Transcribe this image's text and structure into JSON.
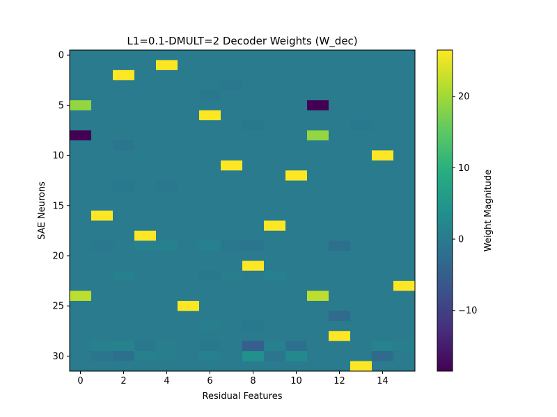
{
  "chart_data": {
    "type": "heatmap",
    "title": "L1=0.1-DMULT=2 Decoder Weights (W_dec)",
    "xlabel": "Residual Features",
    "ylabel": "SAE Neurons",
    "colorbar_label": "Weight Magnitude",
    "colormap": "viridis",
    "n_rows": 32,
    "n_cols": 16,
    "vmin": -18.5,
    "vmax": 26.5,
    "x_ticks": [
      0,
      2,
      4,
      6,
      8,
      10,
      12,
      14
    ],
    "y_ticks": [
      0,
      5,
      10,
      15,
      20,
      25,
      30
    ],
    "colorbar_ticks": [
      20,
      10,
      0,
      -10
    ],
    "colorbar_tick_labels": [
      "20",
      "10",
      "0",
      "−10"
    ],
    "values": [
      [
        0,
        0,
        0,
        0,
        0,
        0,
        0,
        0,
        0,
        0,
        0,
        0,
        0,
        0,
        0,
        0
      ],
      [
        0,
        0,
        0,
        0,
        26.5,
        0,
        0,
        0,
        0,
        0,
        0,
        0,
        0,
        0,
        0,
        0
      ],
      [
        0,
        0,
        26.5,
        0,
        0,
        0,
        0,
        0,
        0,
        0,
        0,
        0,
        0,
        0,
        0,
        0
      ],
      [
        0,
        0,
        0,
        0,
        0,
        0,
        0,
        -0.5,
        0,
        0,
        0,
        0,
        0,
        0,
        0,
        0
      ],
      [
        0,
        0,
        0,
        0,
        0,
        0,
        -0.5,
        0,
        0,
        0,
        0,
        0,
        0,
        0,
        0,
        0
      ],
      [
        19,
        0,
        0,
        0,
        0,
        0,
        0,
        0,
        0,
        0,
        0,
        -18.5,
        0,
        0,
        0,
        0
      ],
      [
        0,
        0,
        0,
        0,
        0,
        0,
        26.5,
        0,
        0,
        0,
        0,
        0,
        0,
        0,
        0,
        0
      ],
      [
        0,
        0,
        0,
        0,
        0,
        0,
        0,
        0,
        -0.5,
        0,
        0,
        0,
        0,
        -0.5,
        0,
        0
      ],
      [
        -18.5,
        0,
        0,
        0,
        0,
        0,
        0,
        0,
        0,
        0,
        0,
        19,
        0,
        0,
        0,
        0
      ],
      [
        0,
        0,
        -1,
        0,
        0,
        0,
        0,
        0,
        0,
        0,
        0,
        0,
        0,
        0,
        0,
        0
      ],
      [
        0,
        0,
        0,
        0,
        0,
        0,
        0,
        0,
        0,
        0,
        0,
        0,
        0,
        0,
        26.5,
        0
      ],
      [
        0,
        0,
        0,
        0,
        0,
        0,
        0,
        26.5,
        0,
        0,
        0,
        0,
        0,
        0,
        0,
        0
      ],
      [
        0,
        0,
        0,
        0,
        0,
        0,
        0,
        0,
        0,
        0,
        26.5,
        0,
        0,
        0,
        0,
        0
      ],
      [
        0,
        0,
        -0.5,
        0,
        -0.5,
        0,
        0,
        0,
        0,
        0,
        0,
        0,
        0,
        0,
        0,
        0
      ],
      [
        0,
        0,
        0,
        0,
        0,
        0,
        0,
        0,
        0,
        0,
        0,
        0,
        0,
        0,
        0,
        0
      ],
      [
        0,
        0,
        0,
        0,
        0,
        0,
        0,
        0,
        0,
        0,
        0,
        0,
        0,
        0,
        0,
        0
      ],
      [
        0,
        26.5,
        0,
        0,
        0,
        0,
        0,
        0,
        0,
        0,
        0,
        0,
        0,
        0,
        0,
        0
      ],
      [
        0,
        0,
        0,
        0,
        0,
        0,
        0,
        0,
        0,
        26.5,
        0,
        0,
        0,
        0,
        0,
        0
      ],
      [
        0,
        0,
        0,
        26.5,
        0,
        0,
        0,
        0,
        0,
        0,
        0,
        0,
        0,
        0,
        0,
        0
      ],
      [
        0,
        -0.5,
        0,
        1,
        1,
        0,
        1,
        -0.5,
        -1,
        0,
        0,
        0,
        -2,
        0,
        0,
        0
      ],
      [
        0,
        0,
        0,
        0,
        0,
        0,
        0,
        0,
        0,
        0,
        0,
        0,
        0,
        0,
        0,
        0
      ],
      [
        0,
        0,
        0,
        0,
        0,
        0,
        0,
        0,
        26.5,
        0,
        0,
        0,
        0,
        0,
        0,
        0
      ],
      [
        0,
        0,
        1,
        0,
        0,
        0,
        -0.5,
        0.5,
        0,
        1,
        0,
        0,
        0,
        0,
        0,
        0
      ],
      [
        0,
        0,
        0,
        0,
        0,
        0,
        0,
        0,
        0,
        0,
        0,
        0,
        0,
        0,
        0,
        26.5
      ],
      [
        22,
        0,
        0,
        0,
        0,
        0,
        0,
        0,
        0,
        0,
        0,
        22,
        0,
        0,
        0,
        0
      ],
      [
        0,
        0,
        0,
        0,
        0,
        26.5,
        0,
        0,
        0,
        0,
        0,
        0,
        0,
        0,
        0,
        0
      ],
      [
        0,
        0,
        0,
        0,
        0,
        0,
        0,
        0,
        0,
        0,
        0,
        0,
        -3,
        0,
        0,
        0
      ],
      [
        0,
        0,
        0,
        0,
        0,
        0,
        0.5,
        0,
        -0.5,
        0,
        0,
        0,
        0,
        0,
        0,
        0
      ],
      [
        0,
        0,
        0,
        0,
        0,
        0,
        0,
        0,
        0,
        0,
        0,
        0,
        26.5,
        0,
        0,
        0
      ],
      [
        0,
        1,
        1.5,
        -0.5,
        0.5,
        0,
        -0.5,
        0,
        -5,
        1,
        -2,
        0,
        0,
        0,
        1.5,
        0.5
      ],
      [
        0,
        -1,
        -2,
        1,
        0.5,
        0,
        1,
        0,
        4,
        -1,
        2.5,
        0,
        0,
        0,
        -3,
        0
      ],
      [
        0,
        0,
        0,
        0,
        0,
        0,
        0,
        0,
        0,
        0,
        0,
        0,
        0,
        26.5,
        0,
        0
      ]
    ]
  }
}
